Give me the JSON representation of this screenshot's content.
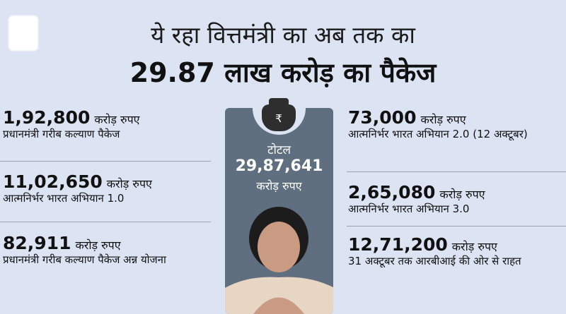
{
  "header": {
    "line1": "ये रहा वित्तमंत्री का अब तक का",
    "line2": "29.87 लाख करोड़ का पैकेज"
  },
  "unit": "करोड़ रुपए",
  "total": {
    "label": "टोटल",
    "amount": "29,87,641",
    "unit": "करोड़ रुपए",
    "icon": "money-bag-rupee-icon"
  },
  "left": [
    {
      "amount": "1,92,800",
      "desc": "प्रधानमंत्री गरीब कल्याण पैकेज"
    },
    {
      "amount": "11,02,650",
      "desc": "आत्मनिर्भर भारत अभियान 1.0"
    },
    {
      "amount": "82,911",
      "desc": "प्रधानमंत्री गरीब कल्याण पैकेज अन्न योजना"
    }
  ],
  "right": [
    {
      "amount": "73,000",
      "desc": "आत्मनिर्भर भारत अभियान 2.0 (12 अक्टूबर)"
    },
    {
      "amount": "2,65,080",
      "desc": "आत्मनिर्भर भारत अभियान 3.0"
    },
    {
      "amount": "12,71,200",
      "desc": "31 अक्टूबर तक आरबीआई की ओर से राहत"
    }
  ],
  "colors": {
    "background": "#dce3f2",
    "panel": "#5f6f7f"
  }
}
